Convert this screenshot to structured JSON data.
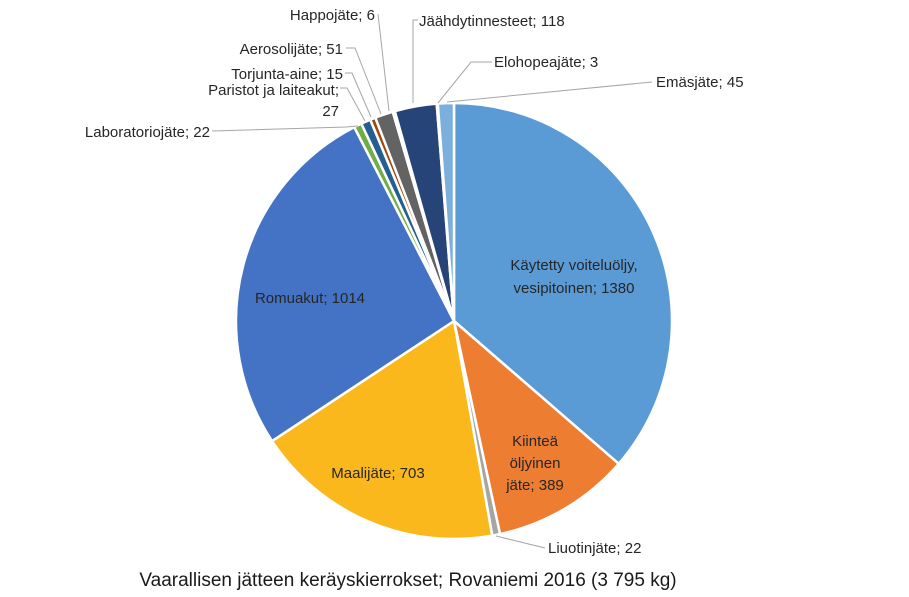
{
  "chart_data": {
    "type": "pie",
    "title": "Vaarallisen jätteen keräyskierrokset; Rovaniemi 2016 (3 795 kg)",
    "slices": [
      {
        "label": "Käytetty voiteluöljy, vesipitoinen",
        "value": 1380,
        "color": "#5b9bd5",
        "display": [
          "Käytetty voiteluöljy,",
          "vesipitoinen; 1380"
        ]
      },
      {
        "label": "Kiinteä öljyinen jäte",
        "value": 389,
        "color": "#ed7d31",
        "display": [
          "Kiinteä",
          "öljyinen",
          "jäte; 389"
        ]
      },
      {
        "label": "Liuotinjäte",
        "value": 22,
        "color": "#a5a5a5",
        "display": [
          "Liuotinjäte; 22"
        ]
      },
      {
        "label": "Maalijäte",
        "value": 703,
        "color": "#fbb81c",
        "display": [
          "Maalijäte; 703"
        ]
      },
      {
        "label": "Romuakut",
        "value": 1014,
        "color": "#4472c4",
        "display": [
          "Romuakut; 1014"
        ]
      },
      {
        "label": "Laboratoriojäte",
        "value": 22,
        "color": "#70ad47",
        "display": [
          "Laboratoriojäte; 22"
        ]
      },
      {
        "label": "Paristot ja laiteakut",
        "value": 27,
        "color": "#255e91",
        "display": [
          "Paristot ja laiteakut;",
          "27"
        ]
      },
      {
        "label": "Torjunta-aine",
        "value": 15,
        "color": "#9e480e",
        "display": [
          "Torjunta-aine; 15"
        ]
      },
      {
        "label": "Aerosolijäte",
        "value": 51,
        "color": "#636363",
        "display": [
          "Aerosolijäte; 51"
        ]
      },
      {
        "label": "Happojäte",
        "value": 6,
        "color": "#997300",
        "display": [
          "Happojäte; 6"
        ]
      },
      {
        "label": "Jäähdytinnesteet",
        "value": 118,
        "color": "#264478",
        "display": [
          "Jäähdytinnesteet; 118"
        ]
      },
      {
        "label": "Elohopeajäte",
        "value": 3,
        "color": "#43682b",
        "display": [
          "Elohopeajäte; 3"
        ]
      },
      {
        "label": "Emäsjäte",
        "value": 45,
        "color": "#7cafdd",
        "display": [
          "Emäsjäte; 45"
        ]
      }
    ]
  }
}
